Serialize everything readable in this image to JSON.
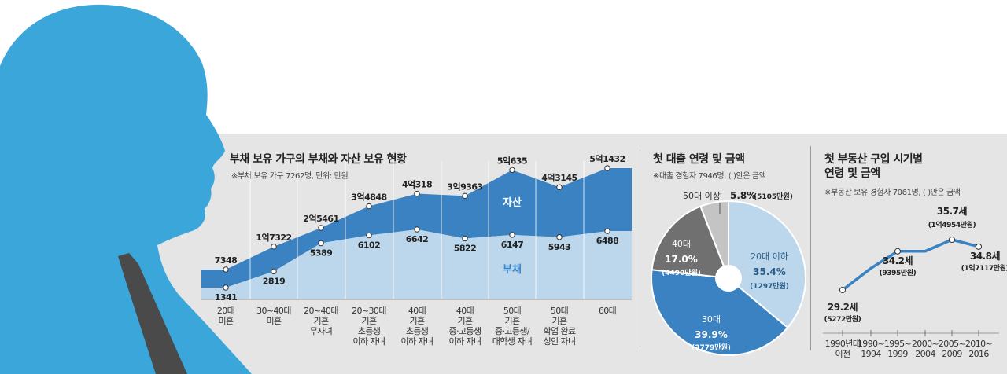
{
  "colors": {
    "silhouette": "#3aa6da",
    "tie": "#4a4a4a",
    "panel_bg": "#e5e5e6",
    "asset": "#3a82c1",
    "debt": "#bcd7eb",
    "pie_20": "#bcd7eb",
    "pie_30": "#3a82c1",
    "pie_40": "#707070",
    "pie_50": "#c4c4c4",
    "line": "#3a82c1"
  },
  "chart_data": [
    {
      "type": "area",
      "title": "부채 보유 가구의 부채와 자산 보유 현황",
      "note": "※부채 보유 가구 7262명, 단위: 만원",
      "categories": [
        "20대\n미혼",
        "30~40대\n미혼",
        "20~40대\n기혼\n무자녀",
        "20~30대\n기혼\n초등생\n이하 자녀",
        "40대\n기혼\n초등생\n이하 자녀",
        "40대\n기혼\n중·고등생\n이하 자녀",
        "50대\n기혼\n중·고등생/\n대학생 자녀",
        "50대\n기혼\n학업 완료\n성인 자녀",
        "60대"
      ],
      "series": [
        {
          "name": "자산",
          "values": [
            7348,
            17322,
            25461,
            34848,
            40318,
            39363,
            50635,
            43145,
            51432
          ],
          "labels": [
            "7348",
            "1억7322",
            "2억5461",
            "3억4848",
            "4억318",
            "3억9363",
            "5억635",
            "4억3145",
            "5억1432"
          ]
        },
        {
          "name": "부채",
          "values": [
            1341,
            2819,
            5389,
            6102,
            6642,
            5822,
            6147,
            5943,
            6488
          ],
          "labels": [
            "1341",
            "2819",
            "5389",
            "6102",
            "6642",
            "5822",
            "6147",
            "5943",
            "6488"
          ]
        }
      ]
    },
    {
      "type": "pie",
      "title": "첫 대출 연령 및 금액",
      "note": "※대출 경험자 7946명, ( )안은 금액",
      "slices": [
        {
          "label": "20대 이하",
          "value": 35.4,
          "pct": "35.4%",
          "amount": "(1297만원)"
        },
        {
          "label": "30대",
          "value": 39.9,
          "pct": "39.9%",
          "amount": "(3779만원)"
        },
        {
          "label": "40대",
          "value": 17.0,
          "pct": "17.0%",
          "amount": "(4490만원)"
        },
        {
          "label": "50대 이상",
          "value": 5.8,
          "pct": "5.8%",
          "amount": "(5105만원)"
        }
      ]
    },
    {
      "type": "line",
      "title": "첫 부동산 구입 시기별",
      "title2": "연령 및 금액",
      "note": "※부동산 보유 경험자 7061명, ( )안은 금액",
      "categories": [
        "1990년대\n이전",
        "1990~\n1994",
        "1995~\n1999",
        "2000~\n2004",
        "2005~\n2009",
        "2010~\n2016"
      ],
      "values": [
        29.2,
        32.0,
        34.2,
        34.2,
        35.7,
        34.8
      ],
      "point_labels": [
        {
          "index": 0,
          "age": "29.2세",
          "amount": "(5272만원)"
        },
        {
          "index": 2,
          "age": "34.2세",
          "amount": "(9395만원)"
        },
        {
          "index": 4,
          "age": "35.7세",
          "amount": "(1억4954만원)"
        },
        {
          "index": 5,
          "age": "34.8세",
          "amount": "(1억7117만원)"
        }
      ]
    }
  ]
}
